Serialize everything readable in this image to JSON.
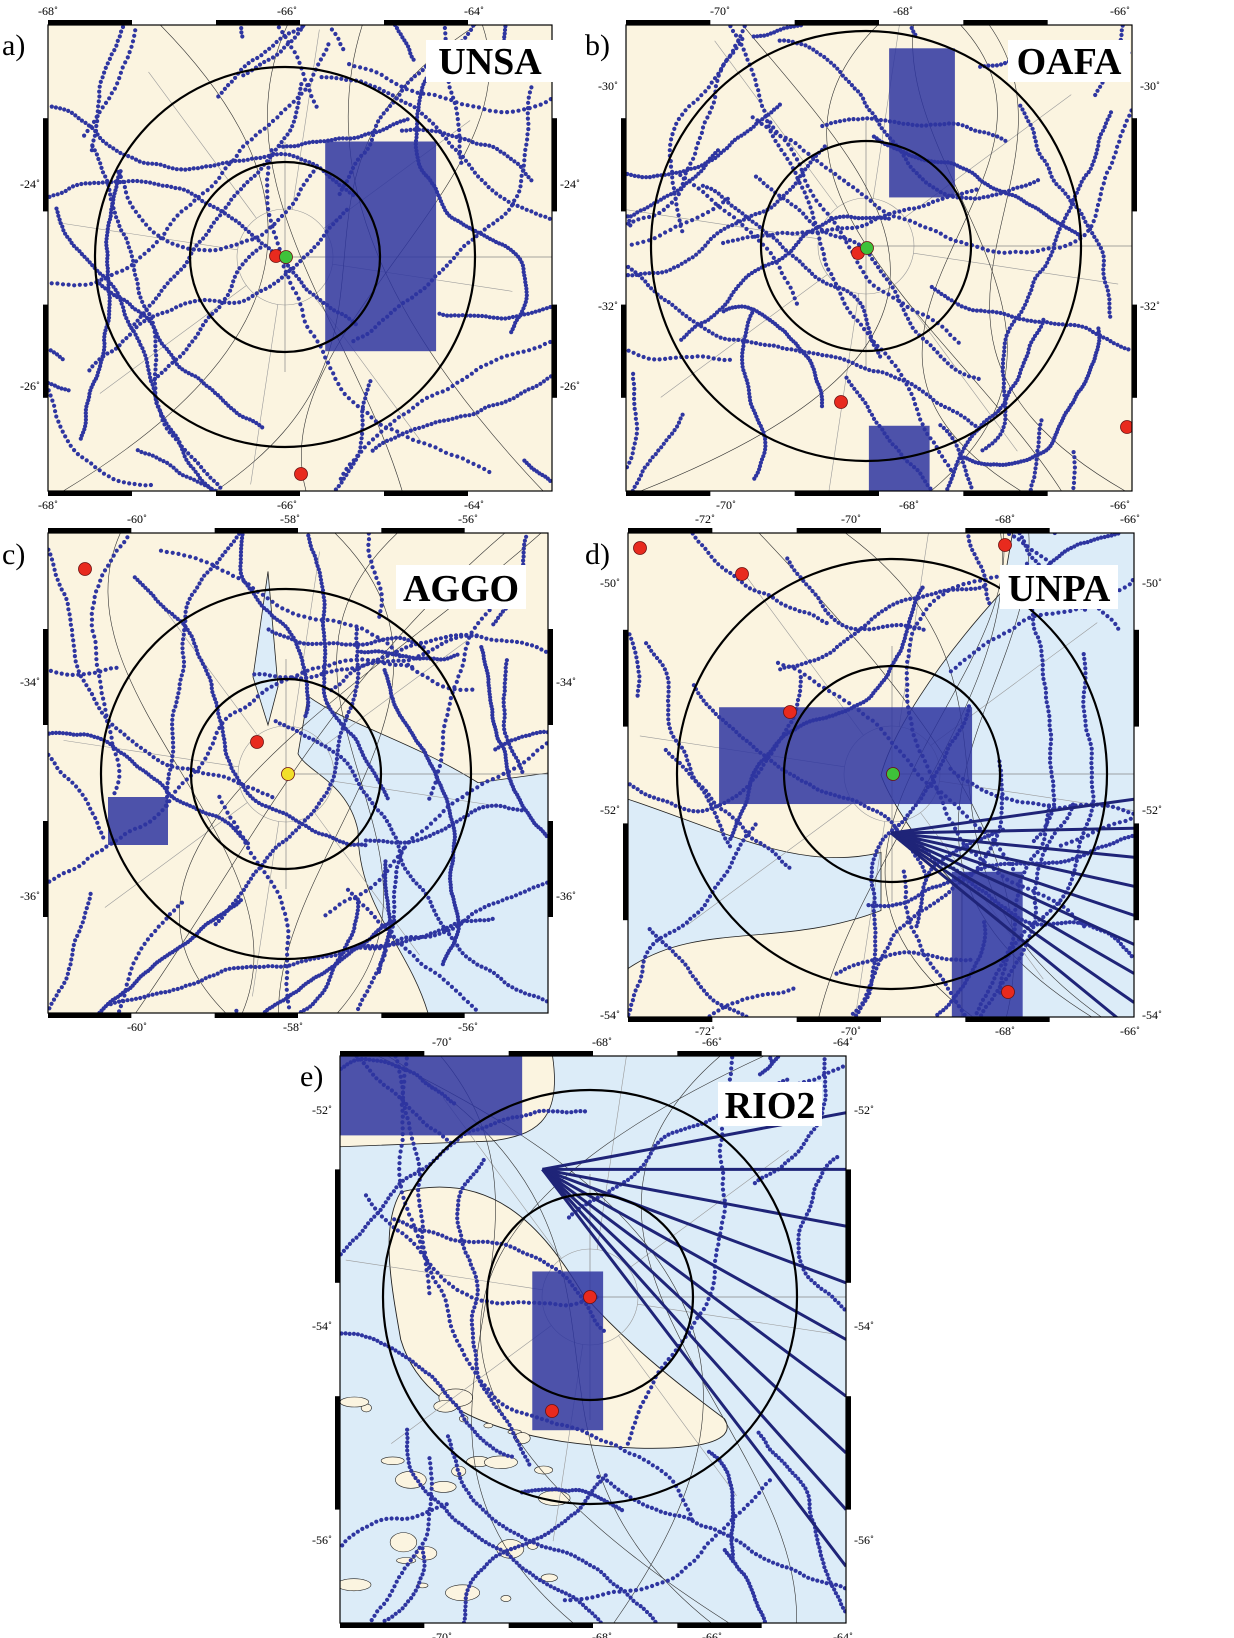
{
  "colors": {
    "land": "#fbf4e0",
    "ocean": "#dcecf8",
    "survey": "#2e35a0",
    "ring": "#000000",
    "marker_red": "#e82a1e",
    "marker_green": "#3ec23a",
    "marker_yellow": "#f2df2a",
    "frame": "#000000"
  },
  "panels": [
    {
      "id": "a",
      "letter": "a)",
      "station": "UNSA",
      "top_ticks": [
        "-68˚",
        "-66˚",
        "-64˚"
      ],
      "bottom_ticks": [
        "-68˚",
        "-66˚",
        "-64˚"
      ],
      "left_ticks": [
        "-24˚",
        "-26˚"
      ],
      "right_ticks": [
        "-24˚",
        "-26˚"
      ],
      "center_marker": "green",
      "markers": [
        "red",
        "green",
        "red"
      ]
    },
    {
      "id": "b",
      "letter": "b)",
      "station": "OAFA",
      "top_ticks": [
        "-70˚",
        "-68˚",
        "-66˚"
      ],
      "bottom_ticks": [
        "-70˚",
        "-68˚",
        "-66˚"
      ],
      "left_ticks": [
        "-30˚",
        "-32˚"
      ],
      "right_ticks": [
        "-30˚",
        "-32˚"
      ],
      "center_marker": "green",
      "markers": [
        "red",
        "green",
        "red",
        "red"
      ]
    },
    {
      "id": "c",
      "letter": "c)",
      "station": "AGGO",
      "top_ticks": [
        "-60˚",
        "-58˚",
        "-56˚"
      ],
      "bottom_ticks": [
        "-60˚",
        "-58˚",
        "-56˚"
      ],
      "left_ticks": [
        "-34˚",
        "-36˚"
      ],
      "right_ticks": [
        "-34˚",
        "-36˚"
      ],
      "center_marker": "yellow",
      "markers": [
        "red",
        "red",
        "yellow"
      ]
    },
    {
      "id": "d",
      "letter": "d)",
      "station": "UNPA",
      "top_ticks": [
        "-72˚",
        "-70˚",
        "-68˚",
        "-66˚"
      ],
      "bottom_ticks": [
        "-72˚",
        "-70˚",
        "-68˚",
        "-66˚"
      ],
      "left_ticks": [
        "-50˚",
        "-52˚",
        "-54˚"
      ],
      "right_ticks": [
        "-50˚",
        "-52˚",
        "-54˚"
      ],
      "center_marker": "green",
      "markers": [
        "red",
        "red",
        "red",
        "red",
        "green",
        "red"
      ]
    },
    {
      "id": "e",
      "letter": "e)",
      "station": "RIO2",
      "top_ticks": [
        "-70˚",
        "-68˚",
        "-66˚",
        "-64˚"
      ],
      "bottom_ticks": [
        "-70˚",
        "-68˚",
        "-66˚",
        "-64˚"
      ],
      "left_ticks": [
        "-52˚",
        "-54˚",
        "-56˚"
      ],
      "right_ticks": [
        "-52˚",
        "-54˚",
        "-56˚"
      ],
      "center_marker": "red",
      "markers": [
        "red",
        "red"
      ]
    }
  ]
}
